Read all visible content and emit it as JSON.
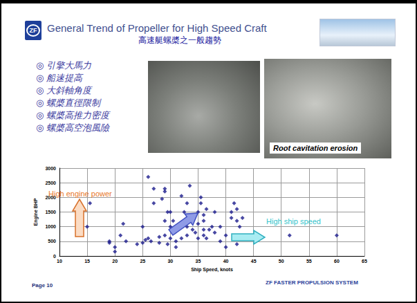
{
  "slide": {
    "logo": "ZF",
    "title": "General Trend of Propeller for High Speed Craft",
    "subtitle": "高速艇螺槳之一般趨勢",
    "bullets": [
      "◎ 引擎大馬力",
      "◎ 船速提高",
      "◎ 大斜軸角度",
      "◎ 螺槳直徑限制",
      "◎ 螺槳高推力密度",
      "◎ 螺槳高空泡風險"
    ],
    "photo_caption": "Root cavitation erosion",
    "page": "Page 10",
    "footer": "ZF FASTER PROPULSION SYSTEM"
  },
  "chart_data": {
    "type": "scatter",
    "xlabel": "Ship Speed, knots",
    "ylabel": "Engine BHP",
    "annotations": [
      "High engine power",
      "High ship speed"
    ],
    "x": [
      15,
      15.5,
      19,
      19,
      20,
      20,
      21,
      21.5,
      22,
      24,
      25,
      25,
      25.5,
      26,
      26,
      26.5,
      27,
      27,
      28,
      28,
      28.5,
      29,
      29,
      29,
      29,
      29.5,
      29.5,
      30,
      30,
      30,
      30.5,
      30.5,
      31,
      31,
      31.5,
      32,
      32,
      32.5,
      33,
      33,
      33,
      33.5,
      34,
      34,
      34.5,
      35,
      35,
      35,
      35.5,
      35.5,
      36,
      36,
      36,
      36,
      36.5,
      36.5,
      37,
      37.5,
      38,
      38,
      39,
      39,
      40,
      40,
      41,
      41,
      41.5,
      42,
      42,
      42,
      42.5,
      43,
      51.5,
      60
    ],
    "values": [
      1000,
      1800,
      500,
      450,
      300,
      150,
      700,
      1100,
      500,
      400,
      450,
      1000,
      550,
      2700,
      600,
      500,
      2300,
      1800,
      650,
      450,
      1950,
      2300,
      2200,
      1200,
      700,
      1500,
      400,
      1500,
      1000,
      600,
      1200,
      800,
      500,
      300,
      1000,
      2050,
      600,
      1500,
      1800,
      1000,
      700,
      2400,
      1200,
      900,
      800,
      1500,
      1100,
      600,
      1800,
      2000,
      1400,
      1200,
      900,
      700,
      1600,
      600,
      900,
      1000,
      1500,
      800,
      1000,
      500,
      700,
      300,
      1500,
      1300,
      1800,
      1600,
      1200,
      400,
      1000,
      1300,
      700,
      700
    ],
    "color": "#1a1a8c",
    "marker": "diamond",
    "xlim": [
      10,
      65
    ],
    "xticks": [
      10,
      15,
      20,
      25,
      30,
      35,
      40,
      45,
      50,
      55,
      60,
      65
    ],
    "ylim": [
      0,
      3000
    ],
    "yticks": [
      0,
      500,
      1000,
      1500,
      2000,
      2500,
      3000
    ],
    "grid": true
  }
}
